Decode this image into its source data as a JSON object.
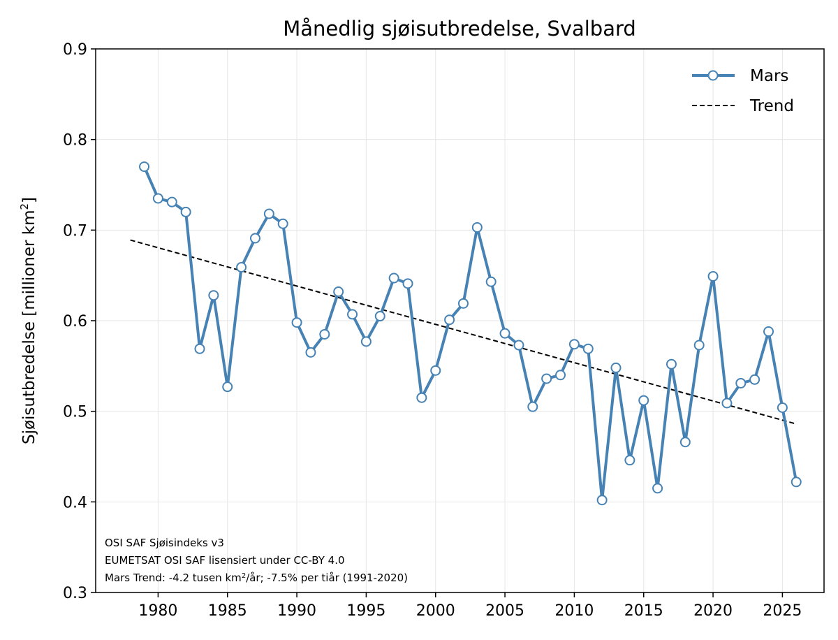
{
  "chart_data": {
    "type": "line",
    "title": "Månedlig sjøisutbredelse, Svalbard",
    "ylabel": "Sjøisutbredelse [millioner km²]",
    "ylabel_parts": {
      "main": "Sjøisutbredelse [millioner km",
      "sup": "2",
      "end": "]"
    },
    "xlabel": "",
    "xlim": [
      1975.5,
      2028.0
    ],
    "ylim": [
      0.3,
      0.9
    ],
    "xticks": [
      1980,
      1985,
      1990,
      1995,
      2000,
      2005,
      2010,
      2015,
      2020,
      2025
    ],
    "yticks": [
      0.3,
      0.4,
      0.5,
      0.6,
      0.7,
      0.8,
      0.9
    ],
    "ytick_labels": [
      "0.3",
      "0.4",
      "0.5",
      "0.6",
      "0.7",
      "0.8",
      "0.9"
    ],
    "grid": true,
    "legend_placement": "top-right",
    "series": [
      {
        "name": "Mars",
        "color": "#4682b4",
        "x": [
          1979,
          1980,
          1981,
          1982,
          1983,
          1984,
          1985,
          1986,
          1987,
          1988,
          1989,
          1990,
          1991,
          1992,
          1993,
          1994,
          1995,
          1996,
          1997,
          1998,
          1999,
          2000,
          2001,
          2002,
          2003,
          2004,
          2005,
          2006,
          2007,
          2008,
          2009,
          2010,
          2011,
          2012,
          2013,
          2014,
          2015,
          2016,
          2017,
          2018,
          2019,
          2020,
          2021,
          2022,
          2023,
          2024,
          2025,
          2026
        ],
        "y": [
          0.77,
          0.735,
          0.731,
          0.72,
          0.569,
          0.628,
          0.527,
          0.659,
          0.691,
          0.718,
          0.707,
          0.598,
          0.565,
          0.585,
          0.632,
          0.607,
          0.577,
          0.605,
          0.647,
          0.641,
          0.515,
          0.545,
          0.601,
          0.619,
          0.703,
          0.643,
          0.586,
          0.573,
          0.505,
          0.536,
          0.54,
          0.574,
          0.569,
          0.402,
          0.548,
          0.446,
          0.512,
          0.415,
          0.552,
          0.466,
          0.573,
          0.649,
          0.509,
          0.531,
          0.535,
          0.588,
          0.504,
          0.422
        ]
      },
      {
        "name": "Trend",
        "color": "#000000",
        "style": "dashed",
        "x": [
          1978,
          2026
        ],
        "y": [
          0.689,
          0.486
        ]
      }
    ],
    "annotations": [
      "OSI SAF Sjøisindeks v3",
      "EUMETSAT OSI SAF lisensiert under CC-BY 4.0"
    ],
    "trend_note": {
      "pre": "Mars Trend: -4.2 tusen km",
      "sup": "2",
      "post": "/år; -7.5% per tiår (1991-2020)"
    }
  }
}
